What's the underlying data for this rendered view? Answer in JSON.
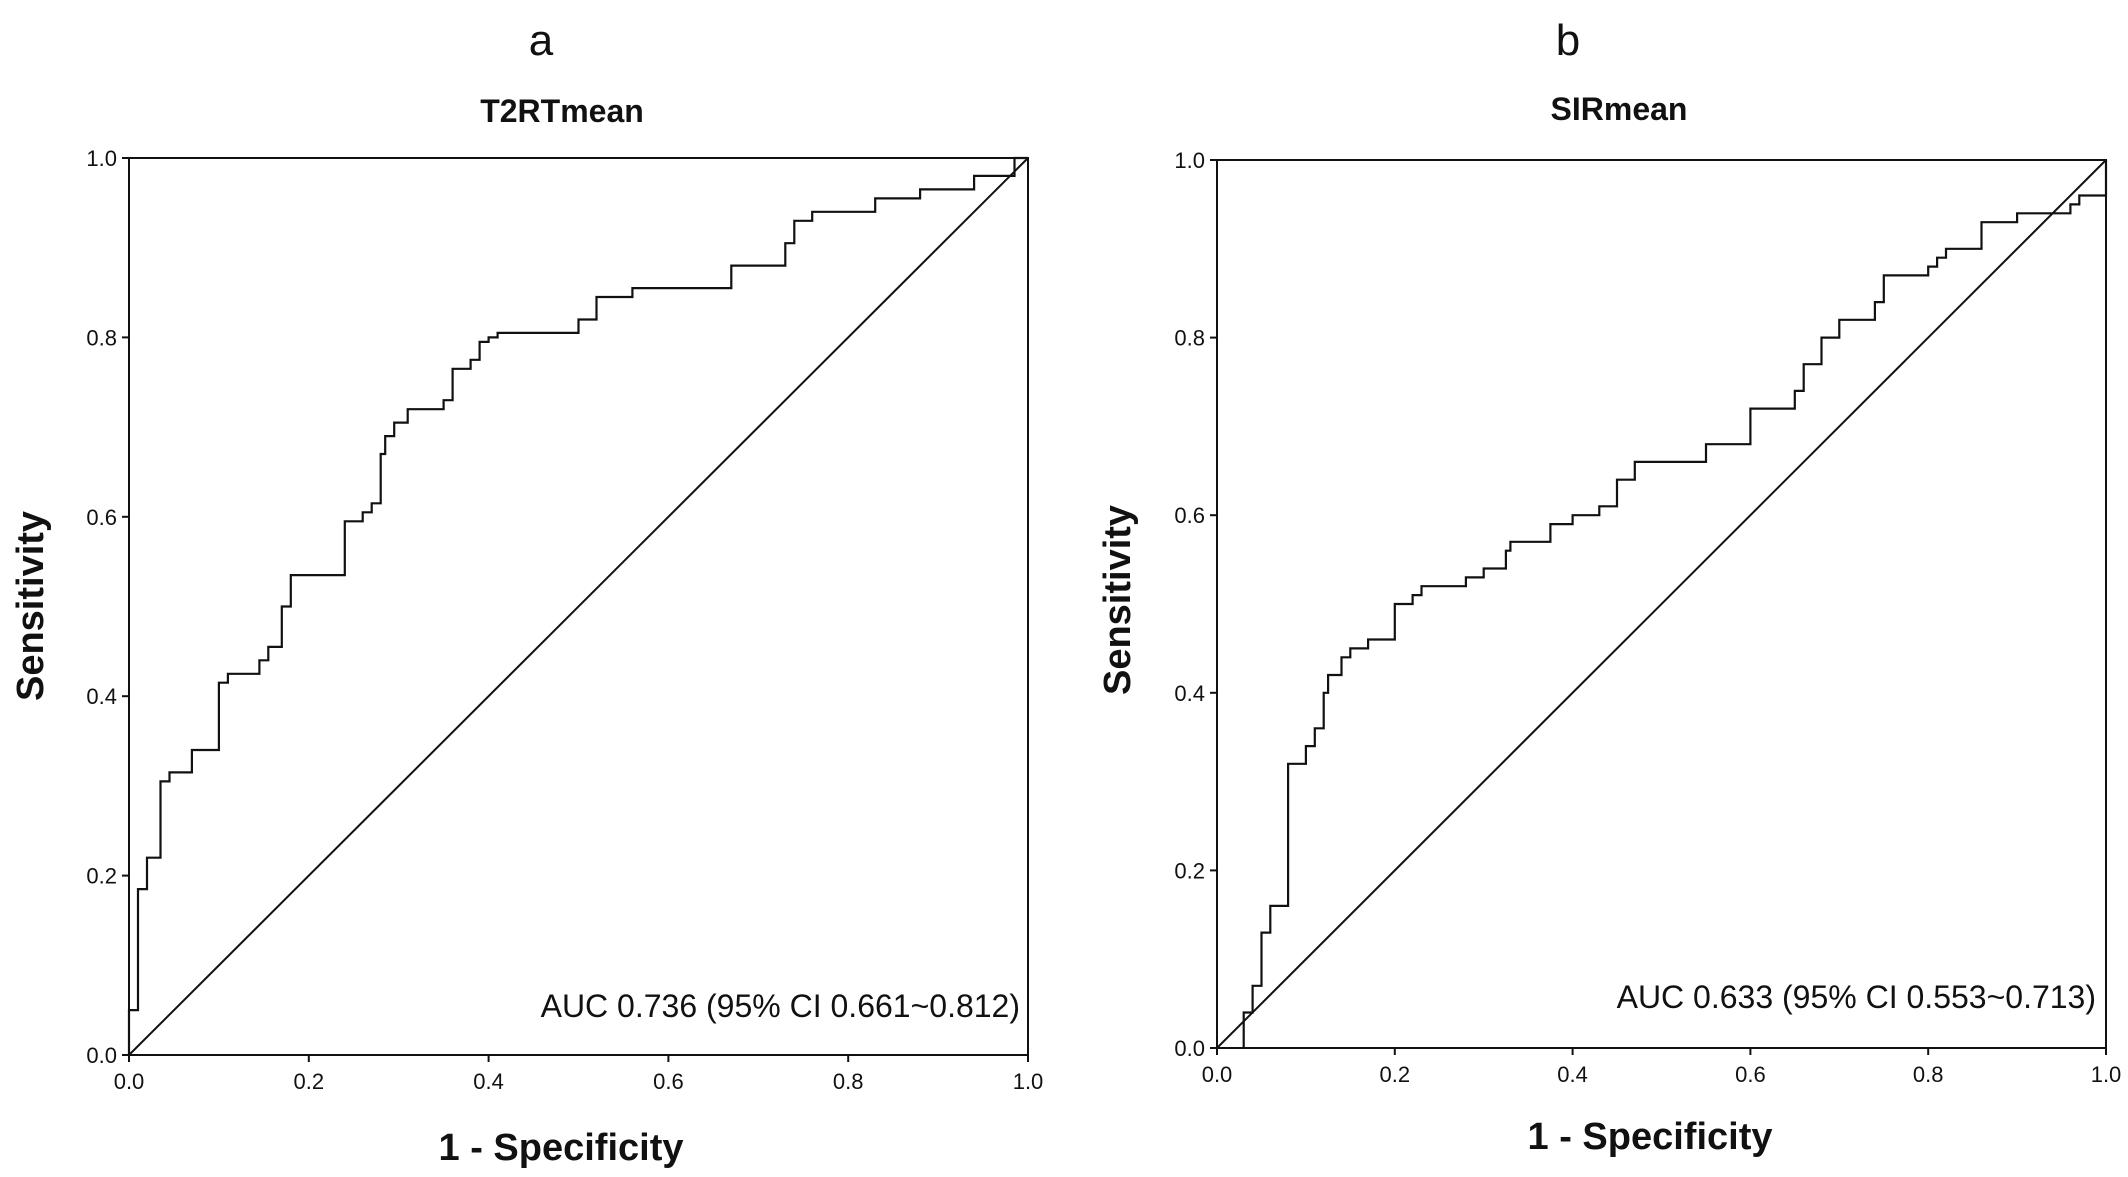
{
  "chart_data": [
    {
      "type": "line",
      "panel_label": "a",
      "title": "T2RTmean",
      "xlabel": "1 - Specificity",
      "ylabel": "Sensitivity",
      "xlim": [
        0,
        1
      ],
      "ylim": [
        0,
        1
      ],
      "xticks": [
        "0.0",
        "0.2",
        "0.4",
        "0.6",
        "0.8",
        "1.0"
      ],
      "yticks": [
        "0.0",
        "0.2",
        "0.4",
        "0.6",
        "0.8",
        "1.0"
      ],
      "annotation": "AUC 0.736 (95% CI 0.661~0.812)",
      "grid": false,
      "reference_line": {
        "x": [
          0,
          1
        ],
        "y": [
          0,
          1
        ]
      },
      "series": [
        {
          "x": [
            0,
            0,
            0.01,
            0.01,
            0.02,
            0.02,
            0.035,
            0.035,
            0.045,
            0.045,
            0.07,
            0.07,
            0.1,
            0.1,
            0.11,
            0.11,
            0.145,
            0.145,
            0.155,
            0.155,
            0.17,
            0.17,
            0.18,
            0.18,
            0.24,
            0.24,
            0.26,
            0.26,
            0.27,
            0.27,
            0.28,
            0.28,
            0.285,
            0.285,
            0.295,
            0.295,
            0.31,
            0.31,
            0.35,
            0.35,
            0.36,
            0.36,
            0.38,
            0.38,
            0.39,
            0.39,
            0.4,
            0.4,
            0.41,
            0.41,
            0.5,
            0.5,
            0.52,
            0.52,
            0.56,
            0.56,
            0.67,
            0.67,
            0.73,
            0.73,
            0.74,
            0.74,
            0.76,
            0.76,
            0.83,
            0.83,
            0.88,
            0.88,
            0.94,
            0.94,
            0.985,
            0.985,
            1.0
          ],
          "y": [
            0,
            0.05,
            0.05,
            0.185,
            0.185,
            0.22,
            0.22,
            0.305,
            0.305,
            0.315,
            0.315,
            0.34,
            0.34,
            0.415,
            0.415,
            0.425,
            0.425,
            0.44,
            0.44,
            0.455,
            0.455,
            0.5,
            0.5,
            0.535,
            0.535,
            0.595,
            0.595,
            0.605,
            0.605,
            0.615,
            0.615,
            0.67,
            0.67,
            0.69,
            0.69,
            0.705,
            0.705,
            0.72,
            0.72,
            0.73,
            0.73,
            0.765,
            0.765,
            0.775,
            0.775,
            0.795,
            0.795,
            0.8,
            0.8,
            0.805,
            0.805,
            0.82,
            0.82,
            0.845,
            0.845,
            0.855,
            0.855,
            0.88,
            0.88,
            0.905,
            0.905,
            0.93,
            0.93,
            0.94,
            0.94,
            0.955,
            0.955,
            0.965,
            0.965,
            0.98,
            0.98,
            1.0,
            1.0
          ]
        }
      ]
    },
    {
      "type": "line",
      "panel_label": "b",
      "title": "SIRmean",
      "xlabel": "1 - Specificity",
      "ylabel": "Sensitivity",
      "xlim": [
        0,
        1
      ],
      "ylim": [
        0,
        1
      ],
      "xticks": [
        "0.0",
        "0.2",
        "0.4",
        "0.6",
        "0.8",
        "1.0"
      ],
      "yticks": [
        "0.0",
        "0.2",
        "0.4",
        "0.6",
        "0.8",
        "1.0"
      ],
      "annotation": "AUC 0.633 (95% CI 0.553~0.713)",
      "grid": false,
      "reference_line": {
        "x": [
          0,
          1
        ],
        "y": [
          0,
          1
        ]
      },
      "series": [
        {
          "x": [
            0.03,
            0.03,
            0.04,
            0.04,
            0.05,
            0.05,
            0.06,
            0.06,
            0.08,
            0.08,
            0.1,
            0.1,
            0.11,
            0.11,
            0.12,
            0.12,
            0.125,
            0.125,
            0.14,
            0.14,
            0.15,
            0.15,
            0.17,
            0.17,
            0.2,
            0.2,
            0.22,
            0.22,
            0.23,
            0.23,
            0.28,
            0.28,
            0.3,
            0.3,
            0.325,
            0.325,
            0.33,
            0.33,
            0.375,
            0.375,
            0.4,
            0.4,
            0.43,
            0.43,
            0.45,
            0.45,
            0.47,
            0.47,
            0.55,
            0.55,
            0.6,
            0.6,
            0.65,
            0.65,
            0.66,
            0.66,
            0.68,
            0.68,
            0.7,
            0.7,
            0.74,
            0.74,
            0.75,
            0.75,
            0.8,
            0.8,
            0.81,
            0.81,
            0.82,
            0.82,
            0.86,
            0.86,
            0.9,
            0.9,
            0.96,
            0.96,
            0.97,
            0.97,
            0.98,
            0.98,
            1.0,
            1.0
          ],
          "y": [
            0,
            0.04,
            0.04,
            0.07,
            0.07,
            0.13,
            0.13,
            0.16,
            0.16,
            0.32,
            0.32,
            0.34,
            0.34,
            0.36,
            0.36,
            0.4,
            0.4,
            0.42,
            0.42,
            0.44,
            0.44,
            0.45,
            0.45,
            0.46,
            0.46,
            0.5,
            0.5,
            0.51,
            0.51,
            0.52,
            0.52,
            0.53,
            0.53,
            0.54,
            0.54,
            0.56,
            0.56,
            0.57,
            0.57,
            0.59,
            0.59,
            0.6,
            0.6,
            0.61,
            0.61,
            0.64,
            0.64,
            0.66,
            0.66,
            0.68,
            0.68,
            0.72,
            0.72,
            0.74,
            0.74,
            0.77,
            0.77,
            0.8,
            0.8,
            0.82,
            0.82,
            0.84,
            0.84,
            0.87,
            0.87,
            0.88,
            0.88,
            0.89,
            0.89,
            0.9,
            0.9,
            0.93,
            0.93,
            0.94,
            0.94,
            0.95,
            0.95,
            0.96,
            0.96,
            0.96,
            0.96,
            1.0
          ]
        }
      ]
    }
  ]
}
